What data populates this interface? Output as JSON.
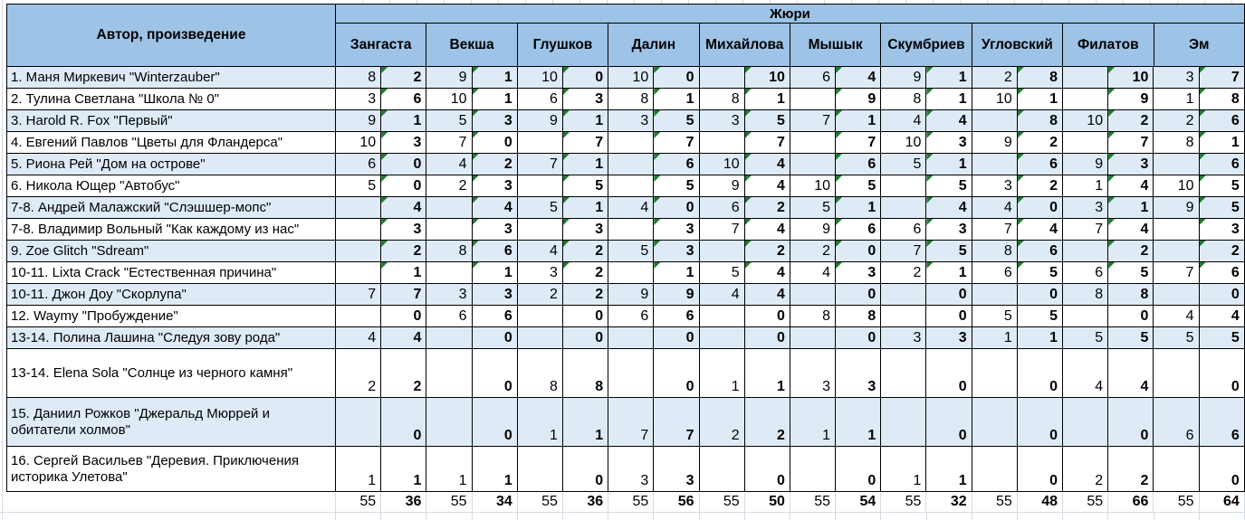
{
  "header": {
    "author": "Автор, произведение",
    "jury_group": "Жюри",
    "juries": [
      "Зангаста",
      "Векша",
      "Глушков",
      "Далин",
      "Михайлова",
      "Мышык",
      "Скумбриев",
      "Угловский",
      "Филатов",
      "Эм"
    ]
  },
  "rows": [
    {
      "author": "1. Маня Миркевич \"Winterzauber\"",
      "flagged": true,
      "cells": [
        [
          "8",
          "2"
        ],
        [
          "9",
          "1"
        ],
        [
          "10",
          "0"
        ],
        [
          "10",
          "0"
        ],
        [
          "",
          "10"
        ],
        [
          "6",
          "4"
        ],
        [
          "9",
          "1"
        ],
        [
          "2",
          "8"
        ],
        [
          "",
          "10"
        ],
        [
          "3",
          "7"
        ]
      ]
    },
    {
      "author": "2. Тулина Светлана \"Школа № 0\"",
      "flagged": true,
      "cells": [
        [
          "3",
          "6"
        ],
        [
          "10",
          "1"
        ],
        [
          "6",
          "3"
        ],
        [
          "8",
          "1"
        ],
        [
          "8",
          "1"
        ],
        [
          "",
          "9"
        ],
        [
          "8",
          "1"
        ],
        [
          "10",
          "1"
        ],
        [
          "",
          "9"
        ],
        [
          "1",
          "8"
        ]
      ]
    },
    {
      "author": "3. Harold R. Fox \"Первый\"",
      "flagged": true,
      "cells": [
        [
          "9",
          "1"
        ],
        [
          "5",
          "3"
        ],
        [
          "9",
          "1"
        ],
        [
          "3",
          "5"
        ],
        [
          "3",
          "5"
        ],
        [
          "7",
          "1"
        ],
        [
          "4",
          "4"
        ],
        [
          "",
          "8"
        ],
        [
          "10",
          "2"
        ],
        [
          "2",
          "6"
        ]
      ]
    },
    {
      "author": "4. Евгений Павлов \"Цветы для Фландерса\"",
      "flagged": true,
      "cells": [
        [
          "10",
          "3"
        ],
        [
          "7",
          "0"
        ],
        [
          "",
          "7"
        ],
        [
          "",
          "7"
        ],
        [
          "",
          "7"
        ],
        [
          "",
          "7"
        ],
        [
          "10",
          "3"
        ],
        [
          "9",
          "2"
        ],
        [
          "",
          "7"
        ],
        [
          "8",
          "1"
        ]
      ]
    },
    {
      "author": "5. Риона Рей \"Дом на острове\"",
      "flagged": true,
      "cells": [
        [
          "6",
          "0"
        ],
        [
          "4",
          "2"
        ],
        [
          "7",
          "1"
        ],
        [
          "",
          "6"
        ],
        [
          "10",
          "4"
        ],
        [
          "",
          "6"
        ],
        [
          "5",
          "1"
        ],
        [
          "",
          "6"
        ],
        [
          "9",
          "3"
        ],
        [
          "",
          "6"
        ]
      ]
    },
    {
      "author": "6. Никола Ющер \"Автобус\"",
      "flagged": true,
      "cells": [
        [
          "5",
          "0"
        ],
        [
          "2",
          "3"
        ],
        [
          "",
          "5"
        ],
        [
          "",
          "5"
        ],
        [
          "9",
          "4"
        ],
        [
          "10",
          "5"
        ],
        [
          "",
          "5"
        ],
        [
          "3",
          "2"
        ],
        [
          "1",
          "4"
        ],
        [
          "10",
          "5"
        ]
      ]
    },
    {
      "author": "7-8. Андрей Малажский \"Слэшшер-мопс\"",
      "flagged": true,
      "cells": [
        [
          "",
          "4"
        ],
        [
          "",
          "4"
        ],
        [
          "5",
          "1"
        ],
        [
          "4",
          "0"
        ],
        [
          "6",
          "2"
        ],
        [
          "5",
          "1"
        ],
        [
          "",
          "4"
        ],
        [
          "4",
          "0"
        ],
        [
          "3",
          "1"
        ],
        [
          "9",
          "5"
        ]
      ]
    },
    {
      "author": "7-8. Владимир Вольный \"Как каждому из нас\"",
      "flagged": true,
      "cells": [
        [
          "",
          "3"
        ],
        [
          "",
          "3"
        ],
        [
          "",
          "3"
        ],
        [
          "",
          "3"
        ],
        [
          "7",
          "4"
        ],
        [
          "9",
          "6"
        ],
        [
          "6",
          "3"
        ],
        [
          "7",
          "4"
        ],
        [
          "7",
          "4"
        ],
        [
          "",
          "3"
        ]
      ]
    },
    {
      "author": "9. Zoe Glitch \"Sdream\"",
      "flagged": true,
      "cells": [
        [
          "",
          "2"
        ],
        [
          "8",
          "6"
        ],
        [
          "4",
          "2"
        ],
        [
          "5",
          "3"
        ],
        [
          "",
          "2"
        ],
        [
          "2",
          "0"
        ],
        [
          "7",
          "5"
        ],
        [
          "8",
          "6"
        ],
        [
          "",
          "2"
        ],
        [
          "",
          "2"
        ]
      ]
    },
    {
      "author": "10-11. Lixta Crack \"Естественная причина\"",
      "flagged": true,
      "cells": [
        [
          "",
          "1"
        ],
        [
          "",
          "1"
        ],
        [
          "3",
          "2"
        ],
        [
          "",
          "1"
        ],
        [
          "5",
          "4"
        ],
        [
          "4",
          "3"
        ],
        [
          "2",
          "1"
        ],
        [
          "6",
          "5"
        ],
        [
          "6",
          "5"
        ],
        [
          "7",
          "6"
        ]
      ]
    },
    {
      "author": "10-11. Джон Доу \"Скорлупа\"",
      "flagged": false,
      "cells": [
        [
          "7",
          "7"
        ],
        [
          "3",
          "3"
        ],
        [
          "2",
          "2"
        ],
        [
          "9",
          "9"
        ],
        [
          "4",
          "4"
        ],
        [
          "",
          "0"
        ],
        [
          "",
          "0"
        ],
        [
          "",
          "0"
        ],
        [
          "8",
          "8"
        ],
        [
          "",
          "0"
        ]
      ]
    },
    {
      "author": "12. Waymy \"Пробуждение\"",
      "flagged": false,
      "cells": [
        [
          "",
          "0"
        ],
        [
          "6",
          "6"
        ],
        [
          "",
          "0"
        ],
        [
          "6",
          "6"
        ],
        [
          "",
          "0"
        ],
        [
          "8",
          "8"
        ],
        [
          "",
          "0"
        ],
        [
          "5",
          "5"
        ],
        [
          "",
          "0"
        ],
        [
          "4",
          "4"
        ]
      ]
    },
    {
      "author": "13-14. Полина Лашина \"Следуя зову рода\"",
      "flagged": false,
      "cells": [
        [
          "4",
          "4"
        ],
        [
          "",
          "0"
        ],
        [
          "",
          "0"
        ],
        [
          "",
          "0"
        ],
        [
          "",
          "0"
        ],
        [
          "",
          "0"
        ],
        [
          "3",
          "3"
        ],
        [
          "1",
          "1"
        ],
        [
          "5",
          "5"
        ],
        [
          "5",
          "5"
        ]
      ]
    },
    {
      "author": "13-14. Elena Sola \"Солнце из черного камня\"",
      "flagged": false,
      "cells": [
        [
          "2",
          "2"
        ],
        [
          "",
          "0"
        ],
        [
          "8",
          "8"
        ],
        [
          "",
          "0"
        ],
        [
          "1",
          "1"
        ],
        [
          "3",
          "3"
        ],
        [
          "",
          "0"
        ],
        [
          "",
          "0"
        ],
        [
          "4",
          "4"
        ],
        [
          "",
          "0"
        ]
      ]
    },
    {
      "author": "15. Даниил Рожков \"Джеральд Мюррей и обитатели холмов\"",
      "flagged": false,
      "cells": [
        [
          "",
          "0"
        ],
        [
          "",
          "0"
        ],
        [
          "1",
          "1"
        ],
        [
          "7",
          "7"
        ],
        [
          "2",
          "2"
        ],
        [
          "1",
          "1"
        ],
        [
          "",
          "0"
        ],
        [
          "",
          "0"
        ],
        [
          "",
          "0"
        ],
        [
          "6",
          "6"
        ]
      ]
    },
    {
      "author": "16. Сергей Васильев \"Деревия. Приключения историка Улетова\"",
      "flagged": false,
      "cells": [
        [
          "1",
          "1"
        ],
        [
          "1",
          "1"
        ],
        [
          "",
          "0"
        ],
        [
          "3",
          "3"
        ],
        [
          "",
          "0"
        ],
        [
          "",
          "0"
        ],
        [
          "1",
          "1"
        ],
        [
          "",
          "0"
        ],
        [
          "2",
          "2"
        ],
        [
          "",
          "0"
        ]
      ]
    }
  ],
  "totals": {
    "cells": [
      [
        "55",
        "36"
      ],
      [
        "55",
        "34"
      ],
      [
        "55",
        "36"
      ],
      [
        "55",
        "56"
      ],
      [
        "55",
        "50"
      ],
      [
        "55",
        "54"
      ],
      [
        "55",
        "32"
      ],
      [
        "55",
        "48"
      ],
      [
        "55",
        "66"
      ],
      [
        "55",
        "64"
      ]
    ]
  },
  "colors": {
    "header_bg": "#9DC3E6",
    "row_alt_bg": "#DEEBF7",
    "row_bg": "#FFFFFF",
    "border": "#000000",
    "gridline": "#D4DAE4",
    "flag_triangle": "#1E7B2E"
  }
}
